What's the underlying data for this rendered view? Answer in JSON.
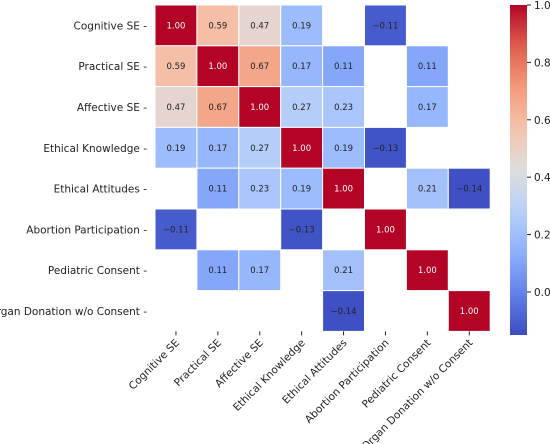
{
  "chart_data": {
    "type": "heatmap",
    "title": "",
    "xlabel": "",
    "ylabel": "",
    "rows": [
      "Cognitive SE",
      "Practical SE",
      "Affective SE",
      "Ethical Knowledge",
      "Ethical Attitudes",
      "Abortion Participation",
      "Pediatric Consent",
      "Organ Donation w/o Consent"
    ],
    "columns": [
      "Cognitive SE",
      "Practical SE",
      "Affective SE",
      "Ethical Knowledge",
      "Ethical Attitudes",
      "Abortion Participation",
      "Pediatric Consent",
      "Organ Donation w/o Consent"
    ],
    "values": [
      [
        1.0,
        0.59,
        0.47,
        0.19,
        null,
        -0.11,
        null,
        null
      ],
      [
        0.59,
        1.0,
        0.67,
        0.17,
        0.11,
        null,
        0.11,
        null
      ],
      [
        0.47,
        0.67,
        1.0,
        0.27,
        0.23,
        null,
        0.17,
        null
      ],
      [
        0.19,
        0.17,
        0.27,
        1.0,
        0.19,
        -0.13,
        null,
        null
      ],
      [
        null,
        0.11,
        0.23,
        0.19,
        1.0,
        null,
        0.21,
        -0.14
      ],
      [
        -0.11,
        null,
        null,
        -0.13,
        null,
        1.0,
        null,
        null
      ],
      [
        null,
        0.11,
        0.17,
        null,
        0.21,
        null,
        1.0,
        null
      ],
      [
        null,
        null,
        null,
        null,
        -0.14,
        null,
        null,
        1.0
      ]
    ],
    "colormap": "coolwarm",
    "vmin": -0.15,
    "vmax": 1.0,
    "colorbar_ticks": [
      1.0,
      0.8,
      0.6,
      0.4,
      0.2,
      0.0
    ],
    "colorbar_tick_labels": [
      "1.0",
      "0.8",
      "0.6",
      "0.4",
      "0.2",
      "0.0"
    ],
    "colorbar_position": "right",
    "grid": false
  }
}
